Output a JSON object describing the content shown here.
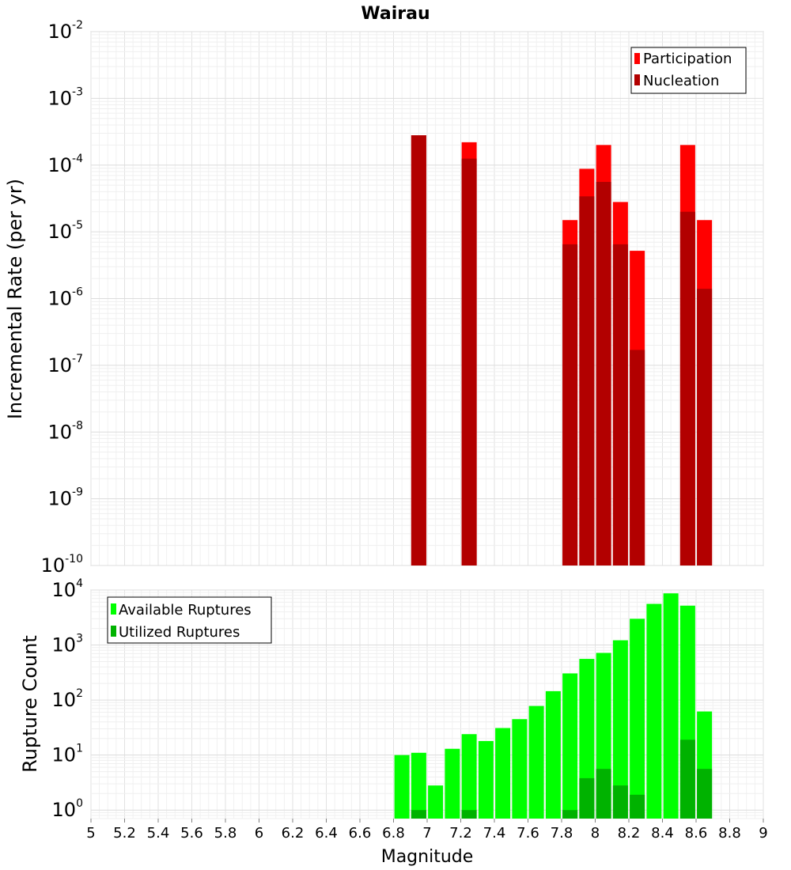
{
  "chart_data": [
    {
      "type": "bar",
      "title": "Wairau",
      "xlabel": "",
      "ylabel": "Incremental Rate (per yr)",
      "yscale": "log",
      "xlim": [
        5,
        9
      ],
      "ylim": [
        1e-10,
        0.01
      ],
      "ytick_base": "10",
      "yticks_exp": [
        "-2",
        "-3",
        "-4",
        "-5",
        "-6",
        "-7",
        "-8",
        "-9",
        "-10"
      ],
      "grid": true,
      "legend_position": "top-right",
      "x": [
        6.95,
        7.25,
        7.85,
        7.95,
        8.05,
        8.15,
        8.25,
        8.55,
        8.65
      ],
      "series": [
        {
          "name": "Participation",
          "color": "#ff0000",
          "values": [
            0.00028,
            0.00022,
            1.5e-05,
            8.8e-05,
            0.0002,
            2.8e-05,
            5.2e-06,
            0.0002,
            1.5e-05
          ]
        },
        {
          "name": "Nucleation",
          "color": "#b20000",
          "values": [
            0.00028,
            0.000125,
            6.5e-06,
            3.4e-05,
            5.6e-05,
            6.5e-06,
            1.7e-07,
            2e-05,
            1.4e-06
          ]
        }
      ]
    },
    {
      "type": "bar",
      "xlabel": "Magnitude",
      "ylabel": "Rupture Count",
      "yscale": "log",
      "xlim": [
        5,
        9
      ],
      "ylim": [
        0.7,
        10000
      ],
      "ytick_base": "10",
      "yticks_exp": [
        "4",
        "3",
        "2",
        "1",
        "0"
      ],
      "xticks": [
        "5",
        "5.2",
        "5.4",
        "5.6",
        "5.8",
        "6",
        "6.2",
        "6.4",
        "6.6",
        "6.8",
        "7",
        "7.2",
        "7.4",
        "7.6",
        "7.8",
        "8",
        "8.2",
        "8.4",
        "8.6",
        "8.8",
        "9"
      ],
      "grid": true,
      "legend_position": "top-left",
      "x": [
        6.85,
        6.95,
        7.05,
        7.15,
        7.25,
        7.35,
        7.45,
        7.55,
        7.65,
        7.75,
        7.85,
        7.95,
        8.05,
        8.15,
        8.25,
        8.35,
        8.45,
        8.55,
        8.65
      ],
      "series": [
        {
          "name": "Available Ruptures",
          "color": "#00ff00",
          "values": [
            10,
            11,
            2.8,
            13,
            24,
            18,
            31,
            45,
            78,
            145,
            305,
            560,
            720,
            1220,
            3000,
            5600,
            8700,
            5200,
            62
          ]
        },
        {
          "name": "Utilized Ruptures",
          "color": "#00b200",
          "values": [
            0,
            1,
            0,
            0,
            1,
            0,
            0,
            0,
            0,
            0,
            1,
            3.8,
            5.6,
            2.8,
            1.9,
            0,
            0,
            19,
            5.6
          ]
        }
      ]
    }
  ]
}
